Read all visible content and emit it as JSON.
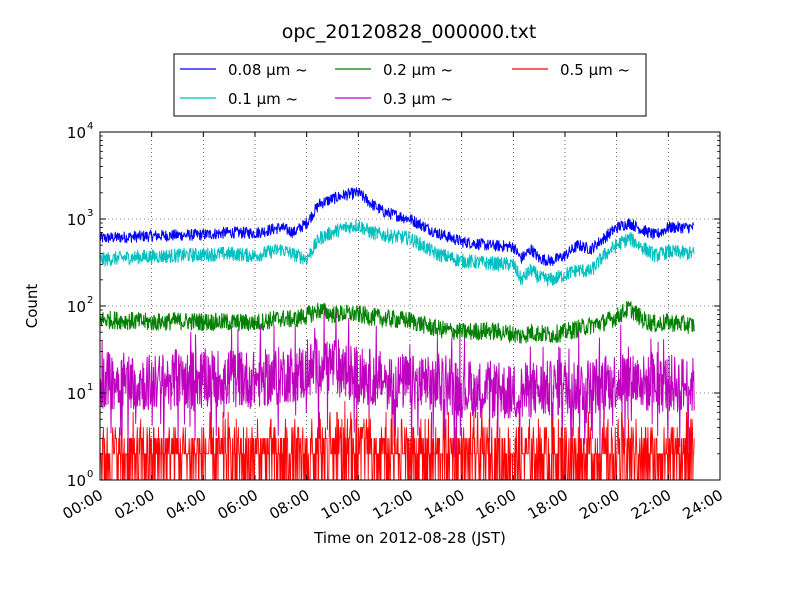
{
  "chart_data": {
    "type": "line",
    "title": "opc_20120828_000000.txt",
    "xlabel": "Time on 2012-08-28 (JST)",
    "ylabel": "Count",
    "yscale": "log",
    "xlim": [
      "00:00",
      "24:00"
    ],
    "ylim": [
      1,
      10000
    ],
    "grid": true,
    "legend_position": "top-center-outside",
    "x_ticks": [
      "00:00",
      "02:00",
      "04:00",
      "06:00",
      "08:00",
      "10:00",
      "12:00",
      "14:00",
      "16:00",
      "18:00",
      "20:00",
      "22:00",
      "24:00"
    ],
    "y_ticks": [
      {
        "base": "10",
        "exp": "0"
      },
      {
        "base": "10",
        "exp": "1"
      },
      {
        "base": "10",
        "exp": "2"
      },
      {
        "base": "10",
        "exp": "3"
      },
      {
        "base": "10",
        "exp": "4"
      }
    ],
    "x_hours": [
      0,
      1,
      2,
      3,
      4,
      5,
      6,
      7,
      7.5,
      8,
      8.5,
      9,
      9.5,
      10,
      10.5,
      11,
      12,
      13,
      14,
      15,
      16,
      16.3,
      16.7,
      17,
      17.5,
      18,
      18.5,
      19,
      19.5,
      20,
      20.5,
      21,
      21.5,
      22,
      23
    ],
    "series": [
      {
        "name": "0.08 μm ~",
        "color": "#0000ff",
        "values": [
          600,
          620,
          640,
          650,
          660,
          700,
          690,
          800,
          700,
          900,
          1500,
          1700,
          1900,
          2000,
          1500,
          1200,
          1000,
          700,
          550,
          500,
          480,
          350,
          450,
          350,
          330,
          380,
          500,
          450,
          600,
          800,
          900,
          750,
          650,
          800,
          800
        ]
      },
      {
        "name": "0.1 μm ~",
        "color": "#00bfbf",
        "values": [
          340,
          360,
          370,
          380,
          390,
          400,
          380,
          450,
          390,
          350,
          600,
          700,
          800,
          850,
          700,
          650,
          600,
          400,
          330,
          310,
          300,
          200,
          260,
          210,
          200,
          230,
          260,
          250,
          380,
          500,
          600,
          470,
          380,
          420,
          400
        ]
      },
      {
        "name": "0.2 μm ~",
        "color": "#008000",
        "values": [
          70,
          68,
          65,
          67,
          66,
          65,
          64,
          72,
          70,
          78,
          90,
          80,
          82,
          80,
          75,
          72,
          68,
          55,
          50,
          52,
          48,
          45,
          50,
          48,
          47,
          50,
          55,
          60,
          65,
          75,
          95,
          70,
          62,
          65,
          60
        ]
      },
      {
        "name": "0.3 μm ~",
        "color": "#bf00bf",
        "values": [
          14,
          14,
          13,
          14,
          15,
          15,
          14,
          16,
          17,
          17,
          22,
          21,
          18,
          16,
          15,
          14,
          13,
          12,
          11,
          11,
          10,
          10,
          11,
          11,
          11,
          12,
          12,
          12,
          13,
          14,
          16,
          13,
          12,
          13,
          12
        ]
      },
      {
        "name": "0.5 μm ~",
        "color": "#ff0000",
        "values": [
          2,
          2,
          2,
          2,
          2,
          2,
          2,
          2,
          2,
          2.5,
          2.5,
          2.5,
          2.5,
          2,
          2,
          2,
          2,
          1.8,
          1.8,
          1.8,
          1.7,
          1.7,
          1.7,
          1.7,
          1.7,
          1.7,
          1.8,
          1.8,
          1.8,
          1.8,
          1.8,
          1.8,
          1.8,
          1.8,
          1.8
        ]
      }
    ]
  }
}
